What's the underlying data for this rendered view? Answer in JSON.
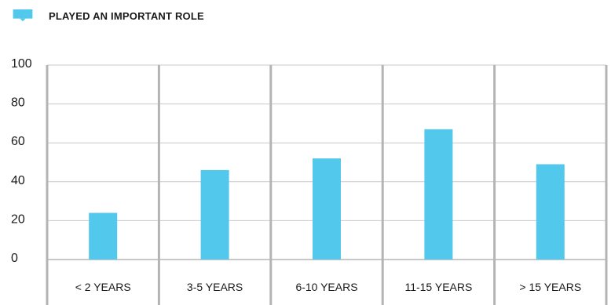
{
  "legend": {
    "label": "PLAYED AN IMPORTANT ROLE"
  },
  "colors": {
    "bar": "#52c8ec",
    "grid": "#c8c8c8",
    "divider": "#b4b4b4",
    "text": "#1a1a1a"
  },
  "chart_data": {
    "type": "bar",
    "categories": [
      "< 2 YEARS",
      "3-5 YEARS",
      "6-10 YEARS",
      "11-15 YEARS",
      "> 15 YEARS"
    ],
    "series": [
      {
        "name": "PLAYED AN IMPORTANT ROLE",
        "values": [
          24,
          46,
          52,
          67,
          49
        ]
      }
    ],
    "ylim": [
      0,
      100
    ],
    "yticks": [
      0,
      20,
      40,
      60,
      80,
      100
    ],
    "grid": true,
    "legend_position": "top-left"
  }
}
